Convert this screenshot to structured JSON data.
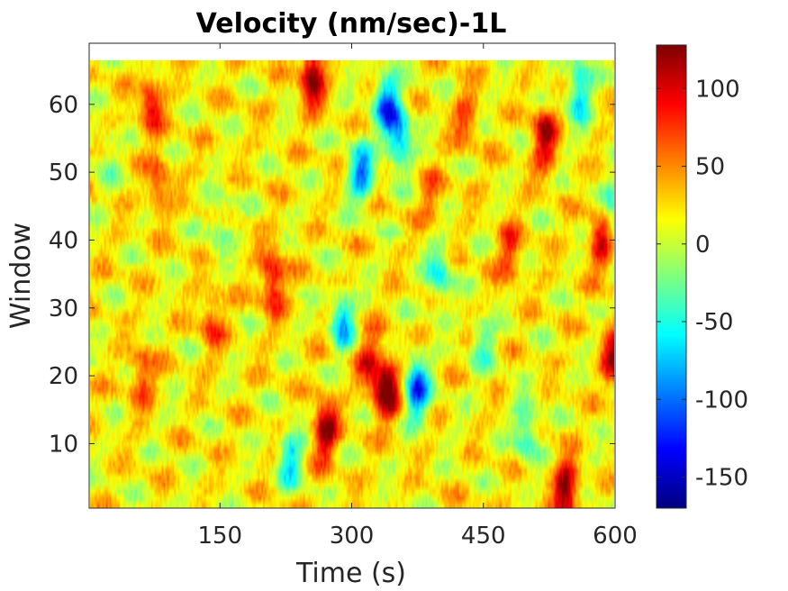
{
  "chart_data": {
    "type": "heatmap",
    "title": "Velocity (nm/sec)-1L",
    "xlabel": "Time (s)",
    "ylabel": "Window",
    "xlim": [
      1,
      600
    ],
    "ylim": [
      0.5,
      69
    ],
    "data_rows": [
      1,
      66
    ],
    "x_ticks": [
      150,
      300,
      450,
      600
    ],
    "y_ticks": [
      10,
      20,
      30,
      40,
      50,
      60
    ],
    "colorbar": {
      "colormap": "jet",
      "clim": [
        -170,
        128
      ],
      "ticks": [
        -150,
        -100,
        -50,
        0,
        50,
        100
      ]
    },
    "hotspots": [
      {
        "t": 340,
        "w": 18,
        "v": 125
      },
      {
        "t": 255,
        "w": 64,
        "v": 115
      },
      {
        "t": 270,
        "w": 12,
        "v": 105
      },
      {
        "t": 545,
        "w": 3,
        "v": 110
      },
      {
        "t": 520,
        "w": 55,
        "v": 95
      },
      {
        "t": 600,
        "w": 23,
        "v": 90
      },
      {
        "t": 210,
        "w": 34,
        "v": 90
      },
      {
        "t": 585,
        "w": 40,
        "v": 80
      },
      {
        "t": 70,
        "w": 60,
        "v": 75
      },
      {
        "t": 320,
        "w": 22,
        "v": 70
      },
      {
        "t": 60,
        "w": 20,
        "v": 60
      },
      {
        "t": 430,
        "w": 58,
        "v": 50
      },
      {
        "t": 140,
        "w": 28,
        "v": 55
      },
      {
        "t": 80,
        "w": 48,
        "v": 55
      },
      {
        "t": 480,
        "w": 38,
        "v": 60
      },
      {
        "t": 390,
        "w": 46,
        "v": 40
      },
      {
        "t": 340,
        "w": 60,
        "v": -120
      },
      {
        "t": 310,
        "w": 50,
        "v": -110
      },
      {
        "t": 375,
        "w": 18,
        "v": -130
      },
      {
        "t": 355,
        "w": 55,
        "v": -100
      },
      {
        "t": 290,
        "w": 28,
        "v": -90
      },
      {
        "t": 230,
        "w": 8,
        "v": -80
      },
      {
        "t": 560,
        "w": 62,
        "v": -90
      },
      {
        "t": 500,
        "w": 12,
        "v": -70
      },
      {
        "t": 400,
        "w": 35,
        "v": -70
      },
      {
        "t": 600,
        "w": 44,
        "v": -60
      },
      {
        "t": 150,
        "w": 42,
        "v": -40
      },
      {
        "t": 20,
        "w": 52,
        "v": -30
      },
      {
        "t": 450,
        "w": 25,
        "v": -50
      }
    ]
  }
}
